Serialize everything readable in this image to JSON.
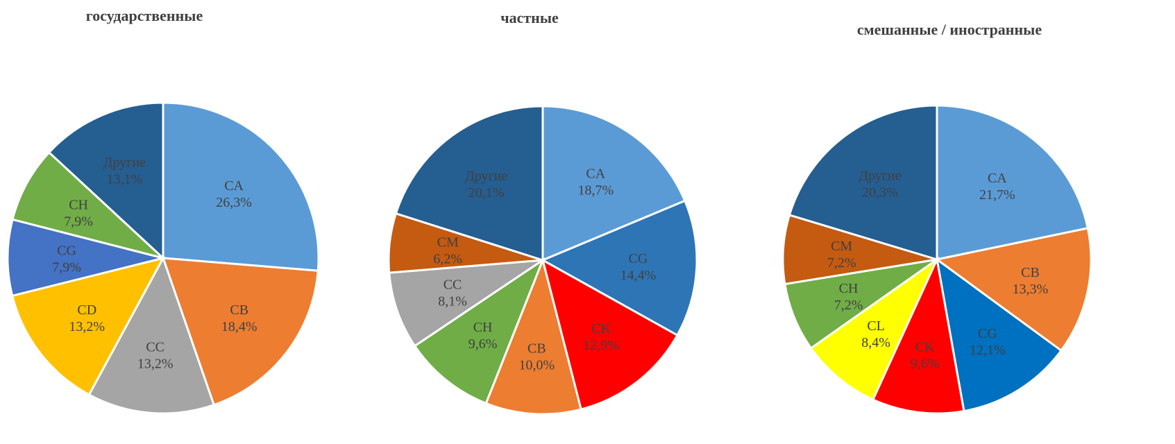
{
  "chart_data": [
    {
      "type": "pie",
      "title": "государственные",
      "categories": [
        "CA",
        "CB",
        "CC",
        "CD",
        "CG",
        "CH",
        "Другие"
      ],
      "values": [
        26.3,
        18.4,
        13.2,
        13.2,
        7.9,
        7.9,
        13.1
      ],
      "value_labels": [
        "26,3%",
        "18,4%",
        "13,2%",
        "13,2%",
        "7,9%",
        "7,9%",
        "13,1%"
      ],
      "colors": [
        "#5b9bd5",
        "#ed7d31",
        "#a5a5a5",
        "#ffc000",
        "#4472c4",
        "#70ad47",
        "#255e91"
      ]
    },
    {
      "type": "pie",
      "title": "частные",
      "categories": [
        "CA",
        "CG",
        "CK",
        "CB",
        "CH",
        "CC",
        "CM",
        "Другие"
      ],
      "values": [
        18.7,
        14.4,
        12.9,
        10.0,
        9.6,
        8.1,
        6.2,
        20.1
      ],
      "value_labels": [
        "18,7%",
        "14,4%",
        "12,9%",
        "10,0%",
        "9,6%",
        "8,1%",
        "6,2%",
        "20,1%"
      ],
      "colors": [
        "#5b9bd5",
        "#2e75b6",
        "#ff0000",
        "#ed7d31",
        "#70ad47",
        "#a5a5a5",
        "#c55a11",
        "#255e91"
      ]
    },
    {
      "type": "pie",
      "title": "смешанные / иностранные",
      "categories": [
        "CA",
        "CB",
        "CG",
        "CK",
        "CL",
        "CH",
        "CM",
        "Другие"
      ],
      "values": [
        21.7,
        13.3,
        12.1,
        9.6,
        8.4,
        7.2,
        7.2,
        20.3
      ],
      "value_labels": [
        "21,7%",
        "13,3%",
        "12,1%",
        "9,6%",
        "8,4%",
        "7,2%",
        "7,2%",
        "20,3%"
      ],
      "colors": [
        "#5b9bd5",
        "#ed7d31",
        "#0070c0",
        "#ff0000",
        "#ffff00",
        "#70ad47",
        "#c55a11",
        "#255e91"
      ]
    }
  ]
}
